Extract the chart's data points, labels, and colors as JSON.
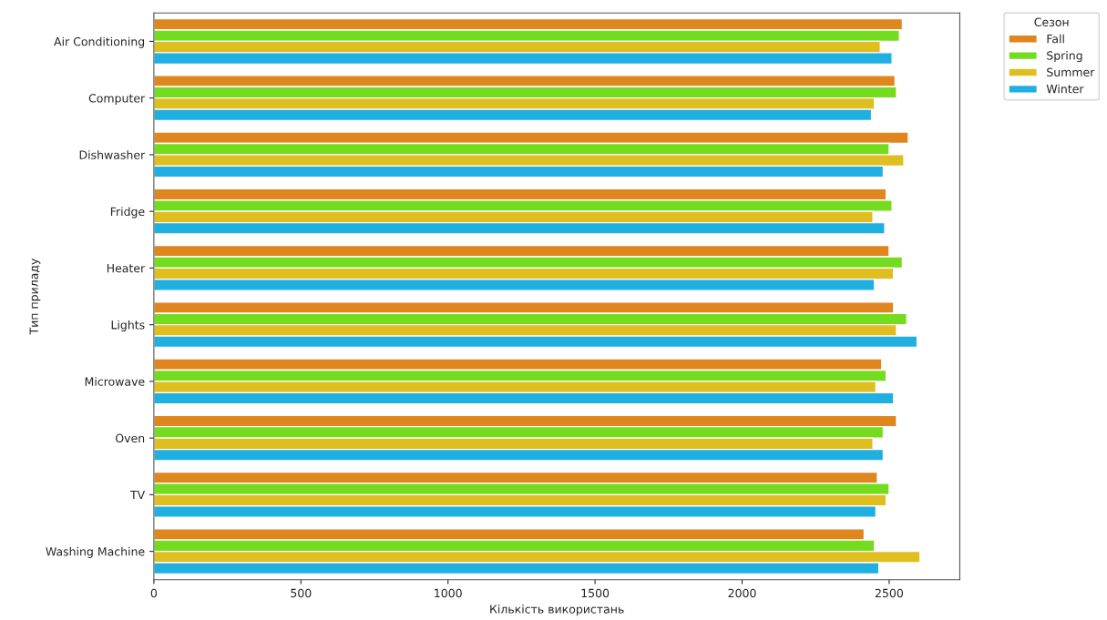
{
  "chart_data": {
    "type": "bar",
    "orientation": "horizontal",
    "xlabel": "Кількість використань",
    "ylabel": "Тип приладу",
    "legend_title": "Сезон",
    "categories": [
      "Air Conditioning",
      "Computer",
      "Dishwasher",
      "Fridge",
      "Heater",
      "Lights",
      "Microwave",
      "Oven",
      "TV",
      "Washing Machine"
    ],
    "series": [
      {
        "name": "Fall",
        "color": "#e0861f",
        "values": [
          2545,
          2520,
          2565,
          2490,
          2500,
          2515,
          2475,
          2525,
          2460,
          2415
        ]
      },
      {
        "name": "Spring",
        "color": "#74dc1f",
        "values": [
          2535,
          2525,
          2500,
          2510,
          2545,
          2560,
          2490,
          2480,
          2500,
          2450
        ]
      },
      {
        "name": "Summer",
        "color": "#dfbf1f",
        "values": [
          2470,
          2450,
          2550,
          2445,
          2515,
          2525,
          2455,
          2445,
          2490,
          2605
        ]
      },
      {
        "name": "Winter",
        "color": "#1fafe0",
        "values": [
          2510,
          2440,
          2480,
          2485,
          2450,
          2595,
          2515,
          2480,
          2455,
          2465
        ]
      }
    ],
    "xlim": [
      0,
      2740
    ],
    "xticks": [
      0,
      500,
      1000,
      1500,
      2000,
      2500
    ],
    "grid": false,
    "legend": "top right"
  }
}
